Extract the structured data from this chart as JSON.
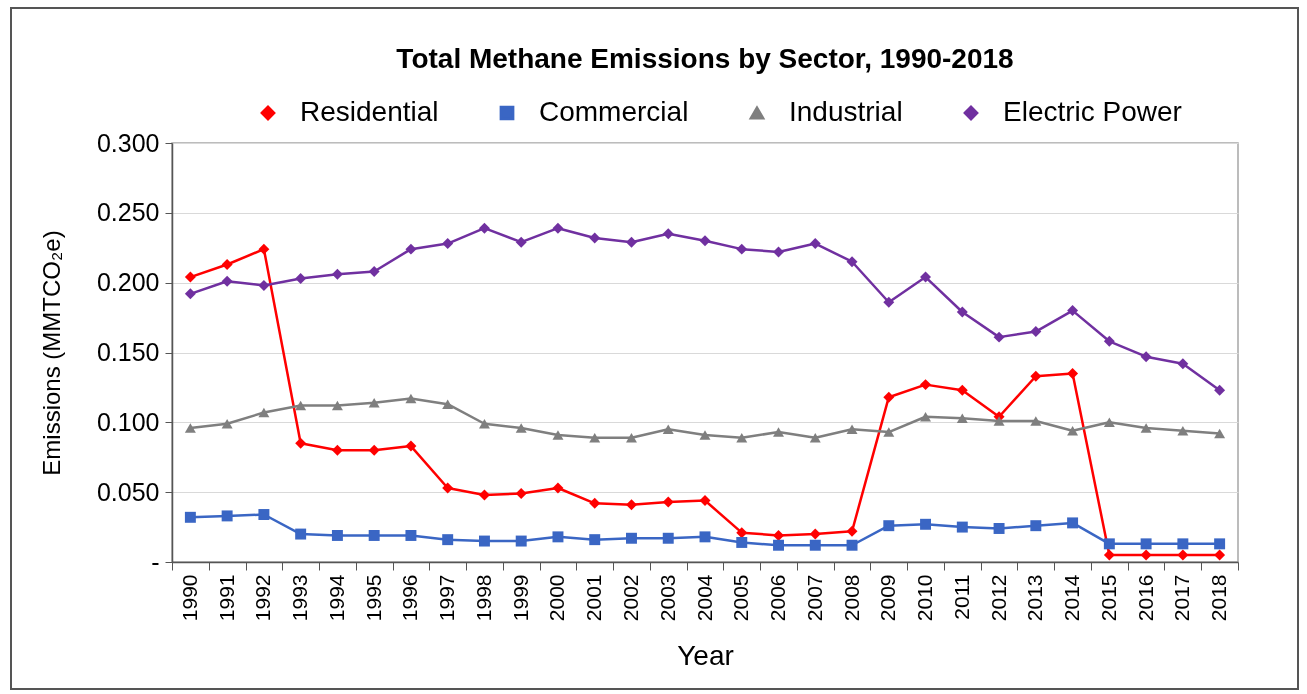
{
  "chart_data": {
    "type": "line",
    "title": "Total Methane Emissions by Sector, 1990-2018",
    "xlabel": "Year",
    "ylabel": "Emissions (MMTCO₂e)",
    "categories": [
      "1990",
      "1991",
      "1992",
      "1993",
      "1994",
      "1995",
      "1996",
      "1997",
      "1998",
      "1999",
      "2000",
      "2001",
      "2002",
      "2003",
      "2004",
      "2005",
      "2006",
      "2007",
      "2008",
      "2009",
      "2010",
      "2011",
      "2012",
      "2013",
      "2014",
      "2015",
      "2016",
      "2017",
      "2018"
    ],
    "series": [
      {
        "name": "Residential",
        "color": "#ff0000",
        "marker": "diamond",
        "values": [
          0.204,
          0.213,
          0.224,
          0.085,
          0.08,
          0.08,
          0.083,
          0.053,
          0.048,
          0.049,
          0.053,
          0.042,
          0.041,
          0.043,
          0.044,
          0.021,
          0.019,
          0.02,
          0.022,
          0.118,
          0.127,
          0.123,
          0.104,
          0.133,
          0.135,
          0.005,
          0.005,
          0.005,
          0.005
        ]
      },
      {
        "name": "Commercial",
        "color": "#3a66c4",
        "marker": "square",
        "values": [
          0.032,
          0.033,
          0.034,
          0.02,
          0.019,
          0.019,
          0.019,
          0.016,
          0.015,
          0.015,
          0.018,
          0.016,
          0.017,
          0.017,
          0.018,
          0.014,
          0.012,
          0.012,
          0.012,
          0.026,
          0.027,
          0.025,
          0.024,
          0.026,
          0.028,
          0.013,
          0.013,
          0.013,
          0.013
        ]
      },
      {
        "name": "Industrial",
        "color": "#7f7f7f",
        "marker": "triangle",
        "values": [
          0.096,
          0.099,
          0.107,
          0.112,
          0.112,
          0.114,
          0.117,
          0.113,
          0.099,
          0.096,
          0.091,
          0.089,
          0.089,
          0.095,
          0.091,
          0.089,
          0.093,
          0.089,
          0.095,
          0.093,
          0.104,
          0.103,
          0.101,
          0.101,
          0.094,
          0.1,
          0.096,
          0.094,
          0.092
        ]
      },
      {
        "name": "Electric Power",
        "color": "#7030a0",
        "marker": "diamond",
        "values": [
          0.192,
          0.201,
          0.198,
          0.203,
          0.206,
          0.208,
          0.224,
          0.228,
          0.239,
          0.229,
          0.239,
          0.232,
          0.229,
          0.235,
          0.23,
          0.224,
          0.222,
          0.228,
          0.215,
          0.186,
          0.204,
          0.179,
          0.161,
          0.165,
          0.18,
          0.158,
          0.147,
          0.142,
          0.123
        ]
      }
    ],
    "ylim": [
      0,
      0.3
    ],
    "yticks": [
      {
        "value": 0,
        "label": "-"
      },
      {
        "value": 0.05,
        "label": "0.050"
      },
      {
        "value": 0.1,
        "label": "0.100"
      },
      {
        "value": 0.15,
        "label": "0.150"
      },
      {
        "value": 0.2,
        "label": "0.200"
      },
      {
        "value": 0.25,
        "label": "0.250"
      },
      {
        "value": 0.3,
        "label": "0.300"
      }
    ],
    "grid": "y",
    "legend": "top",
    "line_style": "solid"
  }
}
